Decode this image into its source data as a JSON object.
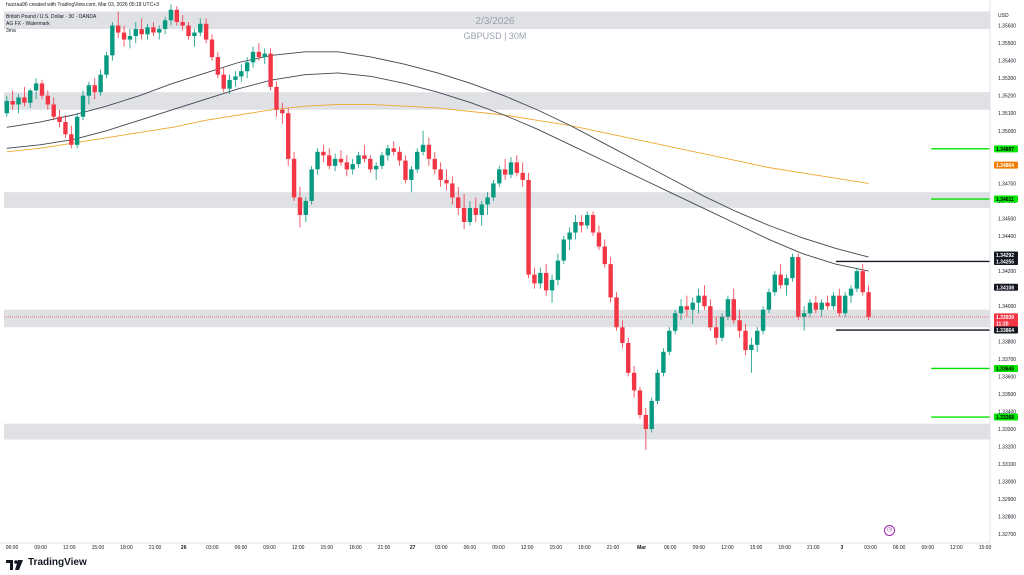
{
  "header": {
    "author_line": "huzzaa96 created with TradingView.com, Mar 03, 2026 05:18 UTC+3",
    "symbol_line": "British Pound / U.S. Dollar · 30 · OANDA",
    "indicator_line": "AG FX - Watermark",
    "third_line": "3ma"
  },
  "watermark": {
    "date": "2/3/2026",
    "symbol": "GBPUSD | 30M"
  },
  "axis": {
    "currency": "USD",
    "price_ticks": [
      "1.35600",
      "1.35500",
      "1.35400",
      "1.35300",
      "1.35200",
      "1.35100",
      "1.35000",
      "1.34900",
      "1.34800",
      "1.34700",
      "1.34600",
      "1.34500",
      "1.34400",
      "1.34300",
      "1.34200",
      "1.34100",
      "1.34000",
      "1.33900",
      "1.33800",
      "1.33700",
      "1.33600",
      "1.33500",
      "1.33400",
      "1.33300",
      "1.33200",
      "1.33100",
      "1.33000",
      "1.32900",
      "1.32800",
      "1.32700"
    ],
    "time_labels": [
      "06:00",
      "09:00",
      "12:00",
      "15:00",
      "18:00",
      "21:00",
      "26",
      "03:00",
      "06:00",
      "09:00",
      "12:00",
      "15:00",
      "18:00",
      "21:00",
      "27",
      "03:00",
      "06:00",
      "09:00",
      "12:00",
      "15:00",
      "18:00",
      "21:00",
      "Mar",
      "06:00",
      "09:00",
      "12:00",
      "15:00",
      "18:00",
      "21:00",
      "3",
      "03:00",
      "06:00",
      "09:00",
      "12:00",
      "15:00"
    ]
  },
  "price_tags": [
    {
      "label": "1.34897",
      "price": 1.34897,
      "color": "#00e600",
      "text_color": "#000000"
    },
    {
      "label": "1.34804",
      "price": 1.34804,
      "color": "#f57c00",
      "text_color": "#ffffff"
    },
    {
      "label": "1.34611",
      "price": 1.34611,
      "color": "#00e600",
      "text_color": "#000000"
    },
    {
      "label": "1.34292",
      "price": 1.34292,
      "color": "#131722",
      "text_color": "#ffffff"
    },
    {
      "label": "1.34255",
      "price": 1.34255,
      "color": "#131722",
      "text_color": "#ffffff"
    },
    {
      "label": "1.34108",
      "price": 1.34108,
      "color": "#131722",
      "text_color": "#ffffff"
    },
    {
      "label": "1.33939\n11:20",
      "price": 1.33939,
      "color": "#f23645",
      "text_color": "#ffffff"
    },
    {
      "label": "1.33864",
      "price": 1.33864,
      "color": "#131722",
      "text_color": "#ffffff"
    },
    {
      "label": "1.33645",
      "price": 1.33645,
      "color": "#00e600",
      "text_color": "#000000"
    },
    {
      "label": "1.33368",
      "price": 1.33368,
      "color": "#00e600",
      "text_color": "#000000"
    }
  ],
  "footer": {
    "brand": "TradingView"
  },
  "clock_icon": "clock-icon",
  "colors": {
    "up": "#089981",
    "down": "#f23645",
    "zone": "#dfe1e5",
    "ema_orange": "#f0a830",
    "ema_dark": "#434651",
    "level_green": "#00e600",
    "level_black": "#131722",
    "current_line": "#f23645"
  },
  "chart_data": {
    "type": "candlestick",
    "title": "",
    "symbol": "GBPUSD",
    "timeframe": "30",
    "ylim": [
      1.3265,
      1.357
    ],
    "zones": [
      [
        1.3558,
        1.3568
      ],
      [
        1.3512,
        1.3522
      ],
      [
        1.3456,
        1.3465
      ],
      [
        1.3388,
        1.3398
      ],
      [
        1.3324,
        1.3333
      ]
    ],
    "levels": [
      {
        "price": 1.34897,
        "color": "#00e600",
        "from_bar": 165
      },
      {
        "price": 1.34611,
        "color": "#00e600",
        "from_bar": 165
      },
      {
        "price": 1.34255,
        "color": "#131722",
        "from_bar": 148
      },
      {
        "price": 1.33864,
        "color": "#131722",
        "from_bar": 148
      },
      {
        "price": 1.33645,
        "color": "#00e600",
        "from_bar": 165
      },
      {
        "price": 1.33368,
        "color": "#00e600",
        "from_bar": 165
      }
    ],
    "current_price": 1.33939,
    "bar_count_visible": 176,
    "ohlc": [
      [
        1.351,
        1.352,
        1.3508,
        1.3517
      ],
      [
        1.3517,
        1.3523,
        1.3512,
        1.3515
      ],
      [
        1.3515,
        1.3521,
        1.351,
        1.3519
      ],
      [
        1.3519,
        1.3525,
        1.3514,
        1.3516
      ],
      [
        1.3516,
        1.3524,
        1.3513,
        1.3523
      ],
      [
        1.3523,
        1.353,
        1.3518,
        1.3527
      ],
      [
        1.3527,
        1.3529,
        1.3518,
        1.352
      ],
      [
        1.352,
        1.3523,
        1.3512,
        1.3515
      ],
      [
        1.3515,
        1.3519,
        1.3506,
        1.3508
      ],
      [
        1.3508,
        1.3512,
        1.3502,
        1.3505
      ],
      [
        1.3505,
        1.3509,
        1.3496,
        1.3498
      ],
      [
        1.3498,
        1.3503,
        1.349,
        1.3492
      ],
      [
        1.3492,
        1.351,
        1.349,
        1.3508
      ],
      [
        1.3508,
        1.3523,
        1.3506,
        1.352
      ],
      [
        1.352,
        1.3528,
        1.3515,
        1.3526
      ],
      [
        1.3526,
        1.353,
        1.3518,
        1.3522
      ],
      [
        1.3522,
        1.3535,
        1.352,
        1.3532
      ],
      [
        1.3532,
        1.3545,
        1.353,
        1.3543
      ],
      [
        1.3543,
        1.3562,
        1.354,
        1.356
      ],
      [
        1.356,
        1.3568,
        1.3553,
        1.3556
      ],
      [
        1.3556,
        1.356,
        1.3548,
        1.3552
      ],
      [
        1.3552,
        1.3558,
        1.3547,
        1.3554
      ],
      [
        1.3554,
        1.3562,
        1.355,
        1.3558
      ],
      [
        1.3558,
        1.3564,
        1.3552,
        1.3555
      ],
      [
        1.3555,
        1.3561,
        1.3552,
        1.3559
      ],
      [
        1.3559,
        1.3562,
        1.3554,
        1.3556
      ],
      [
        1.3556,
        1.356,
        1.3552,
        1.3558
      ],
      [
        1.3558,
        1.3565,
        1.3555,
        1.3563
      ],
      [
        1.3563,
        1.3572,
        1.356,
        1.3569
      ],
      [
        1.3569,
        1.3571,
        1.356,
        1.3562
      ],
      [
        1.3562,
        1.3566,
        1.3557,
        1.356
      ],
      [
        1.356,
        1.3562,
        1.3552,
        1.3554
      ],
      [
        1.3554,
        1.3558,
        1.3548,
        1.3556
      ],
      [
        1.3556,
        1.3564,
        1.3554,
        1.3561
      ],
      [
        1.3561,
        1.3564,
        1.355,
        1.3552
      ],
      [
        1.3552,
        1.3555,
        1.354,
        1.3542
      ],
      [
        1.3542,
        1.3545,
        1.353,
        1.3532
      ],
      [
        1.3532,
        1.3536,
        1.3522,
        1.3524
      ],
      [
        1.3524,
        1.3532,
        1.3521,
        1.3529
      ],
      [
        1.3529,
        1.3534,
        1.3525,
        1.3531
      ],
      [
        1.3531,
        1.3538,
        1.3528,
        1.3534
      ],
      [
        1.3534,
        1.3542,
        1.353,
        1.3539
      ],
      [
        1.3539,
        1.3548,
        1.3536,
        1.3545
      ],
      [
        1.3545,
        1.355,
        1.354,
        1.3542
      ],
      [
        1.3542,
        1.3547,
        1.3538,
        1.3544
      ],
      [
        1.3544,
        1.3547,
        1.3523,
        1.3525
      ],
      [
        1.3525,
        1.3528,
        1.3508,
        1.3512
      ],
      [
        1.3512,
        1.3516,
        1.3504,
        1.351
      ],
      [
        1.351,
        1.3513,
        1.348,
        1.3484
      ],
      [
        1.3484,
        1.3488,
        1.346,
        1.3462
      ],
      [
        1.3462,
        1.3468,
        1.3445,
        1.3452
      ],
      [
        1.3452,
        1.3462,
        1.3448,
        1.346
      ],
      [
        1.346,
        1.348,
        1.3458,
        1.3478
      ],
      [
        1.3478,
        1.349,
        1.3475,
        1.3488
      ],
      [
        1.3488,
        1.3492,
        1.3482,
        1.3486
      ],
      [
        1.3486,
        1.349,
        1.3478,
        1.348
      ],
      [
        1.348,
        1.3487,
        1.3477,
        1.3484
      ],
      [
        1.3484,
        1.3489,
        1.348,
        1.3482
      ],
      [
        1.3482,
        1.3486,
        1.3474,
        1.3478
      ],
      [
        1.3478,
        1.3484,
        1.3475,
        1.3481
      ],
      [
        1.3481,
        1.3488,
        1.3479,
        1.3486
      ],
      [
        1.3486,
        1.3492,
        1.3482,
        1.3484
      ],
      [
        1.3484,
        1.3486,
        1.3476,
        1.3478
      ],
      [
        1.3478,
        1.3482,
        1.3472,
        1.348
      ],
      [
        1.348,
        1.3488,
        1.3478,
        1.3486
      ],
      [
        1.3486,
        1.3492,
        1.3483,
        1.349
      ],
      [
        1.349,
        1.3494,
        1.3486,
        1.3488
      ],
      [
        1.3488,
        1.3491,
        1.348,
        1.3483
      ],
      [
        1.3483,
        1.3486,
        1.347,
        1.3472
      ],
      [
        1.3472,
        1.348,
        1.3465,
        1.3478
      ],
      [
        1.3478,
        1.349,
        1.3476,
        1.3488
      ],
      [
        1.3488,
        1.35,
        1.3486,
        1.3492
      ],
      [
        1.3492,
        1.3496,
        1.348,
        1.3484
      ],
      [
        1.3484,
        1.3488,
        1.3475,
        1.3478
      ],
      [
        1.3478,
        1.3482,
        1.3468,
        1.3472
      ],
      [
        1.3472,
        1.3478,
        1.3466,
        1.347
      ],
      [
        1.347,
        1.3474,
        1.3458,
        1.3462
      ],
      [
        1.3462,
        1.3468,
        1.3452,
        1.3456
      ],
      [
        1.3456,
        1.3464,
        1.3444,
        1.3448
      ],
      [
        1.3448,
        1.346,
        1.3446,
        1.3456
      ],
      [
        1.3456,
        1.3462,
        1.3448,
        1.3452
      ],
      [
        1.3452,
        1.346,
        1.3446,
        1.3458
      ],
      [
        1.3458,
        1.3465,
        1.3452,
        1.3462
      ],
      [
        1.3462,
        1.3472,
        1.346,
        1.347
      ],
      [
        1.347,
        1.348,
        1.3468,
        1.3478
      ],
      [
        1.3478,
        1.3484,
        1.3472,
        1.3475
      ],
      [
        1.3475,
        1.3485,
        1.3473,
        1.3482
      ],
      [
        1.3482,
        1.3486,
        1.3474,
        1.3476
      ],
      [
        1.3476,
        1.3482,
        1.3468,
        1.3472
      ],
      [
        1.3472,
        1.3476,
        1.3416,
        1.3418
      ],
      [
        1.3418,
        1.3422,
        1.341,
        1.3413
      ],
      [
        1.3413,
        1.3422,
        1.341,
        1.3419
      ],
      [
        1.3419,
        1.3424,
        1.3406,
        1.3409
      ],
      [
        1.3409,
        1.3418,
        1.3402,
        1.3415
      ],
      [
        1.3415,
        1.343,
        1.3412,
        1.3426
      ],
      [
        1.3426,
        1.344,
        1.3424,
        1.3438
      ],
      [
        1.3438,
        1.3445,
        1.3432,
        1.3442
      ],
      [
        1.3442,
        1.3452,
        1.3438,
        1.3448
      ],
      [
        1.3448,
        1.3452,
        1.3442,
        1.3446
      ],
      [
        1.3446,
        1.3454,
        1.3444,
        1.3452
      ],
      [
        1.3452,
        1.3454,
        1.344,
        1.3442
      ],
      [
        1.3442,
        1.3446,
        1.3432,
        1.3434
      ],
      [
        1.3434,
        1.3438,
        1.3422,
        1.3424
      ],
      [
        1.3424,
        1.3428,
        1.3402,
        1.3405
      ],
      [
        1.3405,
        1.3408,
        1.3386,
        1.3388
      ],
      [
        1.3388,
        1.3392,
        1.3376,
        1.3379
      ],
      [
        1.3379,
        1.3382,
        1.336,
        1.3362
      ],
      [
        1.3362,
        1.3366,
        1.3348,
        1.3352
      ],
      [
        1.3352,
        1.3354,
        1.3336,
        1.3338
      ],
      [
        1.3338,
        1.3342,
        1.3318,
        1.333
      ],
      [
        1.333,
        1.3348,
        1.3328,
        1.3346
      ],
      [
        1.3346,
        1.3364,
        1.3344,
        1.3362
      ],
      [
        1.3362,
        1.3376,
        1.336,
        1.3374
      ],
      [
        1.3374,
        1.3388,
        1.3372,
        1.3386
      ],
      [
        1.3386,
        1.3398,
        1.3384,
        1.3396
      ],
      [
        1.3396,
        1.3404,
        1.3392,
        1.34
      ],
      [
        1.34,
        1.3406,
        1.3394,
        1.3398
      ],
      [
        1.3398,
        1.3405,
        1.339,
        1.3402
      ],
      [
        1.3402,
        1.341,
        1.3396,
        1.3406
      ],
      [
        1.3406,
        1.3412,
        1.3398,
        1.34
      ],
      [
        1.34,
        1.3404,
        1.3386,
        1.3388
      ],
      [
        1.3388,
        1.3394,
        1.3378,
        1.3382
      ],
      [
        1.3382,
        1.3396,
        1.338,
        1.3394
      ],
      [
        1.3394,
        1.3406,
        1.3392,
        1.3404
      ],
      [
        1.3404,
        1.341,
        1.339,
        1.3392
      ],
      [
        1.3392,
        1.3398,
        1.3382,
        1.3386
      ],
      [
        1.3386,
        1.339,
        1.3372,
        1.3375
      ],
      [
        1.3375,
        1.3382,
        1.3362,
        1.3378
      ],
      [
        1.3378,
        1.3388,
        1.3374,
        1.3386
      ],
      [
        1.3386,
        1.34,
        1.3384,
        1.3398
      ],
      [
        1.3398,
        1.341,
        1.3396,
        1.3408
      ],
      [
        1.3408,
        1.342,
        1.3406,
        1.3418
      ],
      [
        1.3418,
        1.3424,
        1.341,
        1.3412
      ],
      [
        1.3412,
        1.3418,
        1.3406,
        1.3416
      ],
      [
        1.3416,
        1.343,
        1.3414,
        1.3428
      ],
      [
        1.3428,
        1.343,
        1.3392,
        1.3394
      ],
      [
        1.3394,
        1.34,
        1.3386,
        1.3396
      ],
      [
        1.3396,
        1.3404,
        1.3394,
        1.3402
      ],
      [
        1.3402,
        1.3406,
        1.3396,
        1.3398
      ],
      [
        1.3398,
        1.3404,
        1.3394,
        1.3402
      ],
      [
        1.3402,
        1.3406,
        1.3398,
        1.34
      ],
      [
        1.34,
        1.3408,
        1.3398,
        1.3406
      ],
      [
        1.3406,
        1.341,
        1.3394,
        1.3396
      ],
      [
        1.3396,
        1.3408,
        1.3394,
        1.3406
      ],
      [
        1.3406,
        1.3412,
        1.3402,
        1.341
      ],
      [
        1.341,
        1.3422,
        1.3408,
        1.342
      ],
      [
        1.342,
        1.3424,
        1.3406,
        1.3408
      ],
      [
        1.3408,
        1.3412,
        1.3392,
        1.33939
      ]
    ],
    "first_bar_index": 0,
    "ema_dark_1": [
      1.349,
      1.3492,
      1.3495,
      1.35,
      1.3506,
      1.3512,
      1.3518,
      1.3524,
      1.3529,
      1.3532,
      1.3533,
      1.3531,
      1.3527,
      1.3522,
      1.3516,
      1.3509,
      1.3501,
      1.3492,
      1.3483,
      1.3474,
      1.3465,
      1.3456,
      1.3447,
      1.3438,
      1.343,
      1.3424,
      1.342
    ],
    "ema_dark_2": [
      1.3502,
      1.3505,
      1.3509,
      1.3514,
      1.352,
      1.3527,
      1.3533,
      1.3539,
      1.3543,
      1.3545,
      1.3545,
      1.3542,
      1.3538,
      1.3533,
      1.3527,
      1.352,
      1.3512,
      1.3503,
      1.3493,
      1.3483,
      1.3473,
      1.3463,
      1.3454,
      1.3446,
      1.3439,
      1.3433,
      1.3428
    ],
    "ema_orange": [
      1.3488,
      1.349,
      1.3493,
      1.3496,
      1.3499,
      1.3502,
      1.3506,
      1.3509,
      1.3512,
      1.3514,
      1.3515,
      1.3515,
      1.3514,
      1.3513,
      1.3511,
      1.3509,
      1.3506,
      1.3503,
      1.3499,
      1.3495,
      1.3491,
      1.3487,
      1.3483,
      1.3479,
      1.3476,
      1.3473,
      1.347
    ]
  }
}
